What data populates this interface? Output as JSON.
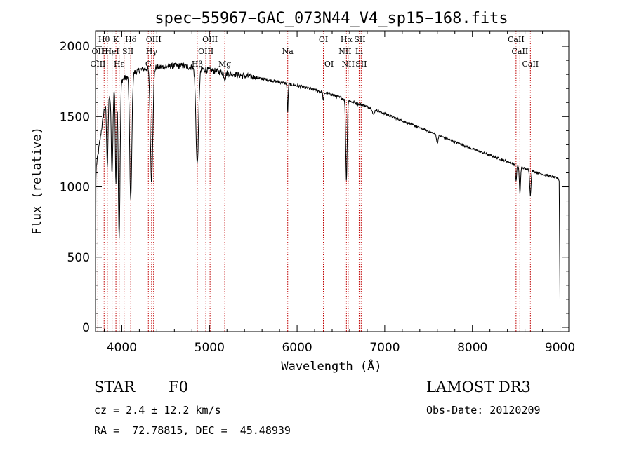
{
  "chart_data": {
    "type": "line",
    "title": "spec−55967−GAC_073N44_V4_sp15−168.fits",
    "xlabel": "Wavelength (Å)",
    "ylabel": "Flux (relative)",
    "xlim": [
      3700,
      9100
    ],
    "ylim": [
      -30,
      2110
    ],
    "x_ticks": [
      4000,
      5000,
      6000,
      7000,
      8000,
      9000
    ],
    "y_ticks": [
      0,
      500,
      1000,
      1500,
      2000
    ],
    "series": [
      {
        "name": "spectrum",
        "continuum": [
          [
            3700,
            1100
          ],
          [
            3800,
            1550
          ],
          [
            3900,
            1700
          ],
          [
            4000,
            1760
          ],
          [
            4100,
            1800
          ],
          [
            4200,
            1830
          ],
          [
            4300,
            1845
          ],
          [
            4400,
            1850
          ],
          [
            4500,
            1855
          ],
          [
            4600,
            1860
          ],
          [
            4700,
            1860
          ],
          [
            4800,
            1850
          ],
          [
            4900,
            1840
          ],
          [
            5000,
            1830
          ],
          [
            5100,
            1820
          ],
          [
            5200,
            1810
          ],
          [
            5400,
            1790
          ],
          [
            5600,
            1770
          ],
          [
            5800,
            1745
          ],
          [
            6000,
            1720
          ],
          [
            6200,
            1690
          ],
          [
            6400,
            1655
          ],
          [
            6600,
            1610
          ],
          [
            6800,
            1570
          ],
          [
            7000,
            1520
          ],
          [
            7200,
            1470
          ],
          [
            7400,
            1420
          ],
          [
            7600,
            1370
          ],
          [
            7800,
            1320
          ],
          [
            8000,
            1270
          ],
          [
            8200,
            1225
          ],
          [
            8400,
            1180
          ],
          [
            8600,
            1130
          ],
          [
            8800,
            1090
          ],
          [
            8980,
            1060
          ]
        ],
        "absorption": [
          {
            "center": 3835,
            "depth": 450,
            "width": 8
          },
          {
            "center": 3889,
            "depth": 600,
            "width": 9
          },
          {
            "center": 3933,
            "depth": 700,
            "width": 7
          },
          {
            "center": 3970,
            "depth": 1100,
            "width": 10
          },
          {
            "center": 4102,
            "depth": 900,
            "width": 12
          },
          {
            "center": 4340,
            "depth": 800,
            "width": 14
          },
          {
            "center": 4861,
            "depth": 680,
            "width": 15
          },
          {
            "center": 5175,
            "depth": 40,
            "width": 10
          },
          {
            "center": 5893,
            "depth": 200,
            "width": 5
          },
          {
            "center": 6300,
            "depth": 60,
            "width": 6
          },
          {
            "center": 6563,
            "depth": 570,
            "width": 8
          },
          {
            "center": 6870,
            "depth": 40,
            "width": 10
          },
          {
            "center": 7600,
            "depth": 60,
            "width": 8
          },
          {
            "center": 8498,
            "depth": 120,
            "width": 6
          },
          {
            "center": 8542,
            "depth": 190,
            "width": 7
          },
          {
            "center": 8662,
            "depth": 180,
            "width": 7
          }
        ],
        "edge_points": [
          [
            3700,
            450
          ],
          [
            3702,
            0
          ],
          [
            3705,
            1050
          ],
          [
            8990,
            1040
          ],
          [
            9000,
            200
          ]
        ]
      }
    ],
    "line_markers": [
      3727,
      3798,
      3835,
      3889,
      3933,
      3970,
      4026,
      4102,
      4303,
      4340,
      4363,
      4861,
      4959,
      5007,
      5175,
      5893,
      6300,
      6364,
      6548,
      6563,
      6583,
      6708,
      6716,
      6731,
      8498,
      8542,
      8662
    ],
    "line_labels": [
      {
        "text": "Hθ",
        "x": 3797,
        "row": 1
      },
      {
        "text": "K",
        "x": 3933,
        "row": 1
      },
      {
        "text": "Hδ",
        "x": 4102,
        "row": 1
      },
      {
        "text": "OIII",
        "x": 4363,
        "row": 1
      },
      {
        "text": "OIII",
        "x": 5007,
        "row": 1
      },
      {
        "text": "OI",
        "x": 6300,
        "row": 1
      },
      {
        "text": "Hα",
        "x": 6563,
        "row": 1
      },
      {
        "text": "SII",
        "x": 6716,
        "row": 1
      },
      {
        "text": "CaII",
        "x": 8498,
        "row": 1
      },
      {
        "text": "OII",
        "x": 3727,
        "row": 2
      },
      {
        "text": "Hη",
        "x": 3835,
        "row": 2
      },
      {
        "text": "HeI",
        "x": 3889,
        "row": 2
      },
      {
        "text": "SII",
        "x": 4069,
        "row": 2
      },
      {
        "text": "Hγ",
        "x": 4340,
        "row": 2
      },
      {
        "text": "OIII",
        "x": 4959,
        "row": 2
      },
      {
        "text": "Na",
        "x": 5893,
        "row": 2
      },
      {
        "text": "NII",
        "x": 6548,
        "row": 2
      },
      {
        "text": "Li",
        "x": 6708,
        "row": 2
      },
      {
        "text": "CaII",
        "x": 8542,
        "row": 2
      },
      {
        "text": "OIII",
        "x": 3727,
        "row": 3
      },
      {
        "text": "Hε",
        "x": 3970,
        "row": 3
      },
      {
        "text": "G",
        "x": 4303,
        "row": 3
      },
      {
        "text": "Hβ",
        "x": 4861,
        "row": 3
      },
      {
        "text": "Mg",
        "x": 5175,
        "row": 3
      },
      {
        "text": "OI",
        "x": 6364,
        "row": 3
      },
      {
        "text": "NII",
        "x": 6583,
        "row": 3
      },
      {
        "text": "SII",
        "x": 6731,
        "row": 3
      },
      {
        "text": "CaII",
        "x": 8662,
        "row": 3
      }
    ],
    "colors": {
      "spectrum": "#000000",
      "markers": "#c00000",
      "axes": "#000000"
    }
  },
  "info": {
    "object_class": "STAR",
    "subclass": "F0",
    "redshift": "cz = 2.4 ± 12.2 km/s",
    "coords": "RA =  72.78815, DEC =  45.48939",
    "survey": "LAMOST DR3",
    "obs_date": "Obs-Date: 20120209"
  }
}
